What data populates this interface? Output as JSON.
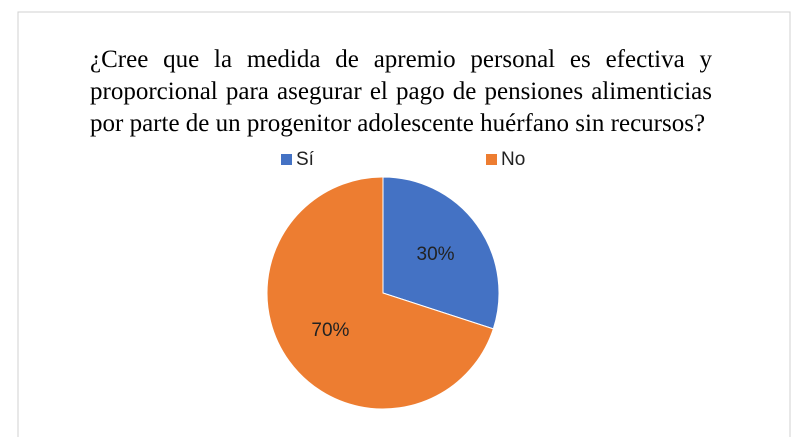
{
  "chart_data": {
    "type": "pie",
    "title": "¿Cree que la medida de apremio personal es efectiva y proporcional para asegurar el pago de pensiones alimenticias por parte de un progenitor adolescente huérfano sin recursos?",
    "categories": [
      "Sí",
      "No"
    ],
    "values": [
      30,
      70
    ],
    "value_labels": [
      "30%",
      "70%"
    ],
    "colors": [
      "#4472c4",
      "#ed7d31"
    ],
    "legend": "top"
  }
}
